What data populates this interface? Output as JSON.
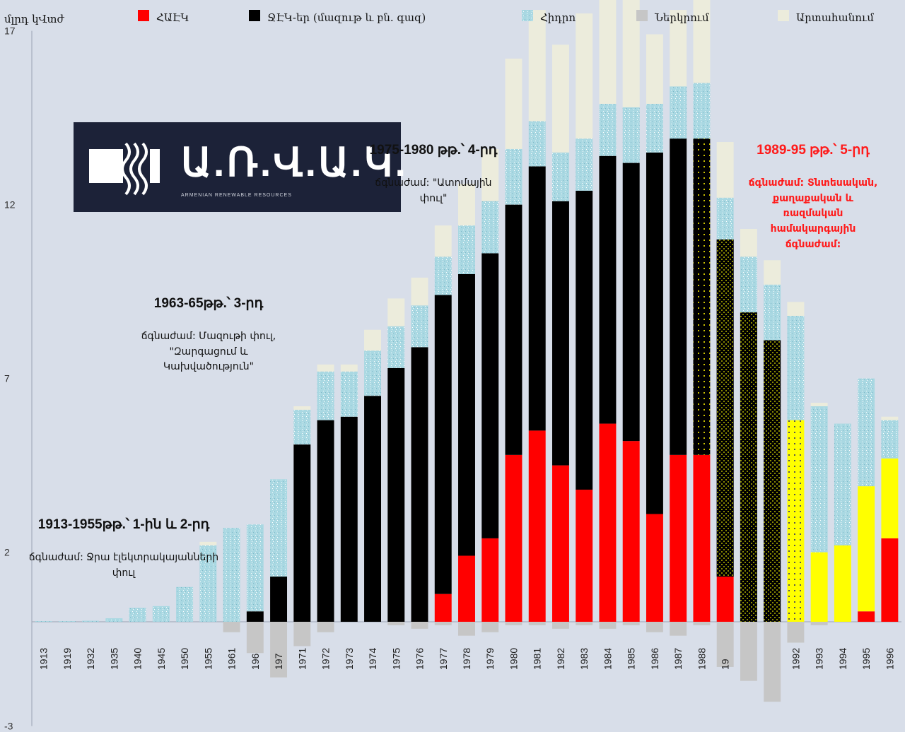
{
  "chart_data": {
    "type": "bar",
    "stacked": true,
    "ylabel": "մլրդ կՎտժ",
    "ylim": [
      -3,
      17
    ],
    "yticks": [
      17,
      12,
      7,
      2,
      -3
    ],
    "categories": [
      "1913",
      "1919",
      "1932",
      "1935",
      "1940",
      "1945",
      "1950",
      "1955",
      "1961",
      "196",
      "197",
      "1971",
      "1972",
      "1973",
      "1974",
      "1975",
      "1976",
      "1977",
      "1978",
      "1979",
      "1980",
      "1981",
      "1982",
      "1983",
      "1984",
      "1985",
      "1986",
      "1987",
      "1988",
      "19",
      "",
      "",
      "1992",
      "1993",
      "1994",
      "1995",
      "1996"
    ],
    "series": [
      {
        "name": "ՀԱԷԿ",
        "color": "#ff0000",
        "values": [
          0,
          0,
          0,
          0,
          0,
          0,
          0,
          0,
          0,
          0,
          0,
          0,
          0,
          0,
          0,
          0,
          0,
          0.8,
          1.9,
          2.4,
          4.8,
          5.5,
          4.5,
          3.8,
          5.7,
          5.2,
          3.1,
          4.8,
          4.8,
          1.3,
          0,
          0,
          0,
          0,
          0,
          0.3,
          2.4
        ]
      },
      {
        "name": "ՋԷԿ-եր (մազութ և բն. գազ)",
        "color": "#000000",
        "values": [
          0,
          0,
          0,
          0,
          0,
          0,
          0,
          0,
          0,
          0.3,
          1.3,
          5.1,
          5.8,
          5.9,
          6.5,
          7.3,
          7.9,
          8.6,
          8.1,
          8.2,
          7.2,
          7.6,
          7.6,
          8.6,
          7.7,
          8.0,
          10.4,
          9.1,
          9.1,
          9.7,
          8.9,
          8.1,
          0,
          0,
          0,
          0,
          0
        ]
      },
      {
        "name": "Հիդրո",
        "color": "#a9d8e2",
        "values": [
          0.02,
          0.02,
          0.03,
          0.1,
          0.4,
          0.45,
          1.0,
          2.2,
          2.7,
          2.5,
          2.8,
          1.0,
          1.4,
          1.3,
          1.3,
          1.2,
          1.2,
          1.1,
          1.4,
          1.5,
          1.6,
          1.3,
          1.4,
          1.5,
          1.5,
          1.6,
          1.4,
          1.5,
          1.6,
          1.2,
          1.6,
          1.6,
          3.0,
          4.2,
          3.5,
          3.1,
          1.1
        ]
      },
      {
        "name": "Ներկրում",
        "color": "#c6c6c6",
        "values": [
          0,
          0,
          0,
          0,
          0,
          0,
          0,
          0,
          -0.3,
          -0.9,
          -1.6,
          -0.7,
          -0.3,
          0,
          0,
          -0.1,
          -0.2,
          -0.1,
          -0.4,
          -0.3,
          -0.1,
          -0.1,
          -0.2,
          -0.1,
          -0.2,
          -0.1,
          -0.3,
          -0.4,
          -0.1,
          -1.3,
          -1.7,
          -2.3,
          -0.6,
          -0.1,
          0,
          0,
          0
        ]
      },
      {
        "name": "Արտահանում",
        "color": "#ececdc",
        "values": [
          0,
          0,
          0,
          0,
          0,
          0,
          0,
          0.1,
          0,
          0,
          0,
          0.1,
          0.2,
          0.2,
          0.6,
          0.8,
          0.8,
          0.9,
          1.2,
          1.5,
          2.6,
          3.2,
          3.1,
          3.6,
          3.8,
          4.0,
          2.0,
          2.2,
          2.8,
          1.6,
          0.8,
          0.7,
          0.4,
          0.1,
          0,
          0,
          0.1
        ]
      }
    ],
    "hatched_categories": [
      29,
      30,
      31
    ],
    "hatched_colors": {
      "29": "#000000",
      "30": "#3a3a00",
      "31": "#4c4c10"
    },
    "yellow_series": {
      "name": "ՀԱԷԿ-yellow-pattern",
      "color": "#ffff00",
      "values": [
        0,
        0,
        0,
        0,
        0,
        0,
        0,
        0,
        0,
        0,
        0,
        0,
        0,
        0,
        0,
        0,
        0,
        0,
        0,
        0,
        0,
        0,
        0,
        0,
        0,
        0,
        0,
        0,
        0,
        0,
        0,
        0,
        5.8,
        2.0,
        2.2,
        3.6,
        2.3
      ]
    },
    "dotted_categories": [
      28,
      32
    ]
  },
  "legend": {
    "unit": "մլրդ կՎտժ",
    "items": [
      {
        "label": "ՀԱԷԿ",
        "color": "#ff0000"
      },
      {
        "label": "ՋԷԿ-եր (մազութ և բն. գազ)",
        "color": "#000000"
      },
      {
        "label": "Հիդրո",
        "color": "#a9d8e2"
      },
      {
        "label": "Ներկրում",
        "color": "#c6c6c6"
      },
      {
        "label": "Արտահանում",
        "color": "#ececdc"
      }
    ]
  },
  "annotations": {
    "a1_title": "1913-1955թթ.՝ 1-ին և 2-րդ",
    "a1_body": "ճգնաժամ: Ջրա էլեկտրակայանների\nփուլ",
    "a2_title": "1963-65թթ.՝ 3-րդ",
    "a2_body": "ճգնաժամ: Մազութի փուլ,\n\"Զարգացում և\nԿախվածություն\"",
    "a3_title": "1975-1980 թթ.՝ 4-րդ",
    "a3_body": "ճգնաժամ: \"Ատոմային\nփուլ\"",
    "a4_title": "1989-95 թթ.՝ 5-րդ",
    "a4_body": "ճգնաժամ: Տնտեսական,\nքաղաքական և\nռազմական\nհամակարգային\nճգնաժամ:"
  },
  "logo": {
    "name": "Ա.Ռ.Վ.Ա.Կ.",
    "sub": "ARMENIAN RENEWABLE RESOURCES"
  },
  "colors": {
    "background": "#d8dee9",
    "yellow": "#ffff00"
  }
}
